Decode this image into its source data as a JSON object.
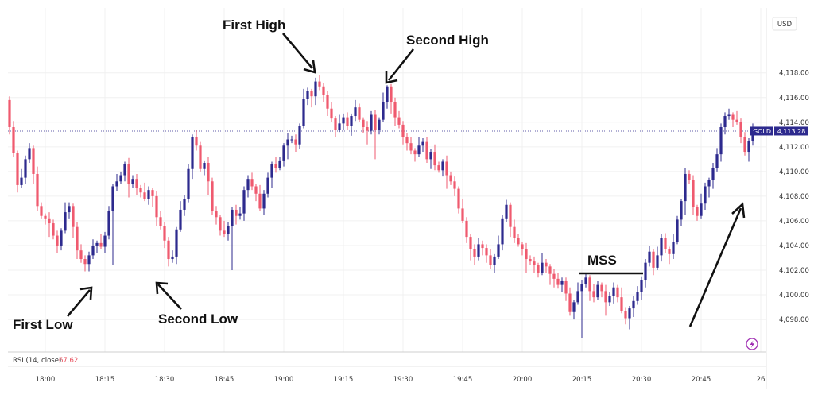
{
  "chart_data": {
    "type": "candlestick",
    "symbol": "GOLD",
    "currency": "USD",
    "last_price": "4,113.28",
    "last_price_value": 4113.28,
    "ylim": [
      4096.2,
      4119.4
    ],
    "y_ticks": [
      4098,
      4100,
      4102,
      4104,
      4106,
      4108,
      4110,
      4112,
      4114,
      4116,
      4118
    ],
    "y_tick_labels": [
      "4,098.00",
      "4,100.00",
      "4,102.00",
      "4,104.00",
      "4,106.00",
      "4,108.00",
      "4,110.00",
      "4,112.00",
      "4,114.00",
      "4,116.00",
      "4,118.00"
    ],
    "x_ticks": [
      {
        "label": "18:00",
        "index": 9
      },
      {
        "label": "18:15",
        "index": 24
      },
      {
        "label": "18:30",
        "index": 39
      },
      {
        "label": "18:45",
        "index": 54
      },
      {
        "label": "19:00",
        "index": 69
      },
      {
        "label": "19:15",
        "index": 84
      },
      {
        "label": "19:30",
        "index": 99
      },
      {
        "label": "19:45",
        "index": 114
      },
      {
        "label": "20:00",
        "index": 129
      },
      {
        "label": "20:15",
        "index": 144
      },
      {
        "label": "20:30",
        "index": 159
      },
      {
        "label": "20:45",
        "index": 174
      },
      {
        "label": "26",
        "index": 189
      }
    ],
    "closes": [
      4113.6,
      4111.5,
      4108.9,
      4109.5,
      4111.0,
      4111.9,
      4109.8,
      4107.2,
      4106.4,
      4106.2,
      4105.8,
      4104.8,
      4104.0,
      4105.2,
      4106.7,
      4107.2,
      4105.5,
      4103.6,
      4102.9,
      4102.5,
      4103.2,
      4104.0,
      4104.2,
      4103.9,
      4104.8,
      4106.8,
      4108.8,
      4109.2,
      4109.7,
      4110.6,
      4109.0,
      4109.4,
      4108.7,
      4108.3,
      4107.8,
      4108.5,
      4108.0,
      4106.3,
      4105.6,
      4104.4,
      4102.9,
      4103.1,
      4105.3,
      4106.9,
      4107.8,
      4110.2,
      4112.8,
      4112.1,
      4110.2,
      4110.7,
      4109.2,
      4106.8,
      4106.3,
      4105.2,
      4104.9,
      4105.6,
      4106.9,
      4106.4,
      4106.6,
      4108.5,
      4109.4,
      4108.8,
      4108.2,
      4107.0,
      4108.2,
      4109.5,
      4110.6,
      4110.3,
      4110.9,
      4112.1,
      4112.6,
      4112.6,
      4112.2,
      4113.7,
      4115.9,
      4116.5,
      4116.1,
      4117.3,
      4116.9,
      4116.2,
      4115.1,
      4114.3,
      4113.4,
      4113.9,
      4114.4,
      4113.7,
      4114.5,
      4115.2,
      4114.2,
      4113.6,
      4113.3,
      4114.6,
      4113.4,
      4114.2,
      4115.6,
      4116.9,
      4115.6,
      4114.4,
      4113.8,
      4112.8,
      4112.3,
      4111.7,
      4111.4,
      4112.1,
      4112.4,
      4111.0,
      4111.6,
      4110.5,
      4110.1,
      4110.8,
      4109.7,
      4109.2,
      4108.6,
      4107.0,
      4106.0,
      4104.7,
      4103.7,
      4103.1,
      4104.1,
      4103.8,
      4103.2,
      4102.4,
      4103.1,
      4104.1,
      4106.2,
      4107.3,
      4105.5,
      4104.6,
      4104.1,
      4103.7,
      4102.9,
      4102.7,
      4102.4,
      4101.8,
      4102.6,
      4102.3,
      4101.7,
      4101.3,
      4100.8,
      4101.1,
      4100.1,
      4098.6,
      4099.4,
      4100.3,
      4100.9,
      4101.4,
      4100.3,
      4099.8,
      4100.8,
      4100.3,
      4099.4,
      4099.9,
      4100.6,
      4099.8,
      4098.7,
      4098.1,
      4098.9,
      4099.5,
      4100.2,
      4101.2,
      4102.6,
      4103.5,
      4102.2,
      4103.2,
      4104.6,
      4103.7,
      4103.3,
      4104.3,
      4106.1,
      4107.6,
      4109.8,
      4109.3,
      4107.1,
      4106.4,
      4107.4,
      4108.8,
      4109.3,
      4110.3,
      4111.4,
      4113.6,
      4114.5,
      4114.6,
      4114.2,
      4114.0,
      4112.8,
      4111.6,
      4112.5,
      4113.3
    ],
    "ohlc_note": "open of each candle equals previous close",
    "rsi": {
      "label": "RSI (14, close)",
      "value": "67.62"
    },
    "annotations": {
      "first_high": "First High",
      "second_high": "Second High",
      "first_low": "First Low",
      "second_low": "Second Low",
      "mss": "MSS"
    },
    "colors": {
      "up": "#2d2a8e",
      "down": "#ef5a6f",
      "price_tag": "#2d2a8e",
      "grid": "#f0f0f0"
    }
  }
}
